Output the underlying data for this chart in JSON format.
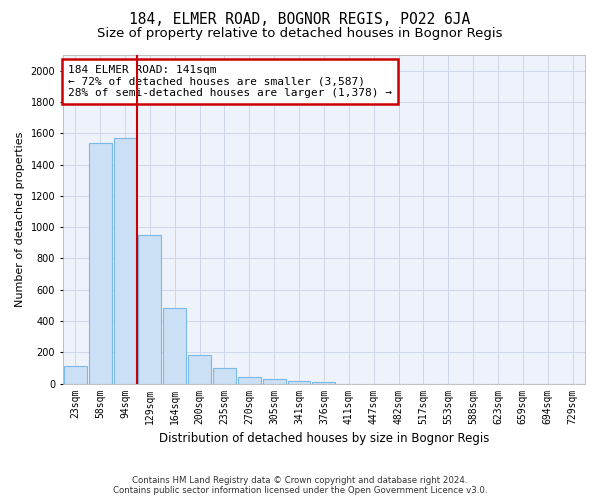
{
  "title": "184, ELMER ROAD, BOGNOR REGIS, PO22 6JA",
  "subtitle": "Size of property relative to detached houses in Bognor Regis",
  "xlabel": "Distribution of detached houses by size in Bognor Regis",
  "ylabel": "Number of detached properties",
  "categories": [
    "23sqm",
    "58sqm",
    "94sqm",
    "129sqm",
    "164sqm",
    "200sqm",
    "235sqm",
    "270sqm",
    "305sqm",
    "341sqm",
    "376sqm",
    "411sqm",
    "447sqm",
    "482sqm",
    "517sqm",
    "553sqm",
    "588sqm",
    "623sqm",
    "659sqm",
    "694sqm",
    "729sqm"
  ],
  "values": [
    115,
    1540,
    1570,
    950,
    480,
    185,
    100,
    45,
    30,
    15,
    10,
    0,
    0,
    0,
    0,
    0,
    0,
    0,
    0,
    0,
    0
  ],
  "bar_color": "#cce0f5",
  "bar_edge_color": "#7ab8e8",
  "vline_x_idx": 2.5,
  "vline_color": "#cc0000",
  "annotation_text": "184 ELMER ROAD: 141sqm\n← 72% of detached houses are smaller (3,587)\n28% of semi-detached houses are larger (1,378) →",
  "annotation_box_color": "#ffffff",
  "annotation_box_edge": "#cc0000",
  "ylim": [
    0,
    2100
  ],
  "yticks": [
    0,
    200,
    400,
    600,
    800,
    1000,
    1200,
    1400,
    1600,
    1800,
    2000
  ],
  "grid_color": "#c8d4e8",
  "background_color": "#eef2fa",
  "footer_line1": "Contains HM Land Registry data © Crown copyright and database right 2024.",
  "footer_line2": "Contains public sector information licensed under the Open Government Licence v3.0.",
  "title_fontsize": 10.5,
  "subtitle_fontsize": 9.5,
  "xlabel_fontsize": 8.5,
  "ylabel_fontsize": 8,
  "tick_fontsize": 7,
  "annotation_fontsize": 8
}
